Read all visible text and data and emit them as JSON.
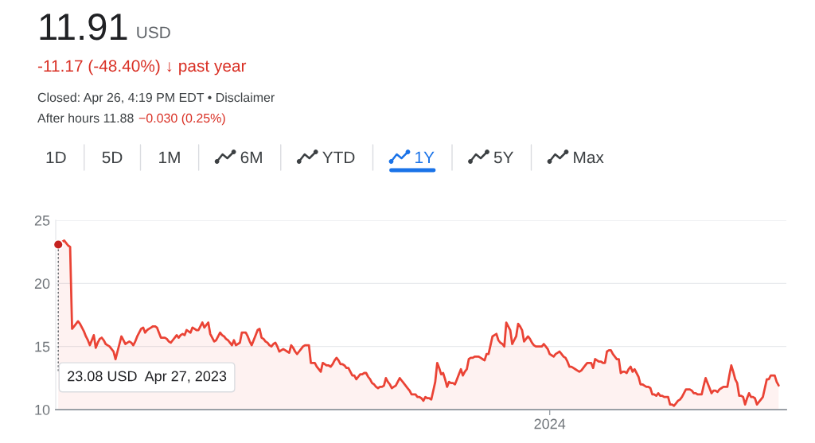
{
  "chart_data": {
    "type": "area",
    "title": "11.91 USD",
    "subtitle": "-11.17 (-48.40%) ↓ past year",
    "annotations": [
      "Closed: Apr 26, 4:19 PM EDT • Disclaimer",
      "After hours 11.88",
      "−0.030 (0.25%)",
      "1D",
      "5D",
      "1M",
      "6M",
      "YTD",
      "1Y",
      "5Y",
      "Max",
      "23.08 USD  Apr 27, 2023"
    ],
    "categories": [
      null,
      null,
      null,
      null,
      null,
      null,
      null,
      null,
      null,
      null,
      null,
      null,
      null,
      null,
      null,
      null,
      null,
      null,
      null,
      null,
      null,
      null,
      null,
      null,
      null,
      null,
      null,
      null,
      null,
      null,
      null,
      null,
      null,
      null,
      null,
      null,
      null,
      null,
      null,
      null,
      null,
      null,
      null,
      null,
      null,
      null,
      null,
      null,
      null,
      null,
      null,
      null,
      null,
      null,
      null,
      null,
      null,
      null,
      null,
      null,
      null,
      null,
      null,
      null,
      null,
      null,
      null,
      null,
      null,
      null,
      null,
      null,
      null,
      null,
      null,
      null,
      null,
      null,
      null,
      null,
      null,
      null,
      null,
      null,
      null,
      null,
      null,
      null,
      null,
      null,
      null,
      null,
      null,
      null,
      null,
      null,
      null,
      null,
      null,
      null,
      null,
      null,
      null,
      null,
      null,
      null,
      null,
      null,
      null,
      null,
      null,
      null,
      null,
      null,
      null,
      null,
      null,
      null,
      null,
      null,
      null,
      null,
      null,
      null,
      null,
      null,
      null,
      null,
      null,
      null,
      null,
      null,
      null,
      null,
      null,
      null,
      null,
      null,
      null,
      null,
      null,
      null,
      null,
      null,
      null,
      null,
      null,
      null,
      null,
      null,
      null,
      null,
      null,
      null,
      null,
      null,
      null,
      null,
      null,
      null,
      null,
      null,
      null,
      null,
      null,
      null,
      null,
      null,
      null,
      null,
      null,
      null,
      null,
      null,
      null,
      null,
      null,
      null,
      null,
      null,
      null,
      null,
      null,
      null,
      null,
      null,
      null,
      null,
      null,
      null,
      null,
      null,
      null,
      null,
      null,
      null,
      null,
      null,
      null,
      null,
      null,
      null,
      null,
      null,
      null,
      null,
      null,
      null,
      null,
      null,
      null,
      null,
      null,
      null,
      null,
      null,
      null,
      null,
      null,
      null,
      null,
      null,
      null,
      null,
      null,
      null,
      null,
      null,
      null,
      null,
      null,
      null,
      null,
      null,
      null,
      null,
      null,
      null,
      null,
      null,
      null,
      null,
      null,
      null,
      null,
      null,
      null,
      null,
      null,
      "2024",
      null,
      null,
      null,
      null,
      null,
      null,
      null,
      null,
      null,
      null,
      null,
      null,
      null,
      null,
      null,
      null,
      null,
      null,
      null,
      null,
      null,
      null,
      null,
      null,
      null,
      null,
      null,
      null,
      null,
      null,
      null,
      null,
      null,
      null,
      null,
      null,
      null,
      null,
      null,
      null,
      null,
      null,
      null,
      null,
      null,
      null,
      null,
      null,
      null,
      null,
      null,
      null,
      null,
      null,
      null,
      null,
      null,
      null,
      null,
      null,
      null,
      null,
      null,
      null,
      null,
      null,
      null,
      null,
      null,
      null,
      null,
      null,
      null,
      null,
      null,
      null,
      null,
      null,
      null,
      null,
      null,
      null,
      null,
      null,
      null,
      null,
      null,
      null,
      null,
      null,
      null,
      null,
      null,
      null,
      null,
      null,
      null,
      null,
      null,
      null,
      null,
      null,
      null,
      null,
      null,
      null,
      null,
      null,
      null,
      null,
      null,
      null,
      null,
      null,
      null,
      null
    ],
    "series": [
      {
        "color": "#ea4335",
        "values": [
          23.08,
          23.2,
          23.3,
          23.4,
          23.2,
          23.0,
          22.9,
          16.4,
          16.6,
          16.8,
          17.0,
          16.8,
          16.5,
          16.2,
          15.8,
          15.5,
          15.1,
          15.5,
          15.9,
          14.9,
          15.3,
          15.6,
          15.7,
          15.5,
          15.2,
          15.1,
          15.0,
          14.8,
          14.6,
          14.0,
          14.6,
          15.2,
          15.8,
          15.5,
          15.2,
          15.3,
          15.4,
          15.3,
          15.1,
          15.4,
          15.8,
          16.1,
          16.4,
          16.5,
          16.1,
          16.3,
          16.4,
          16.5,
          16.6,
          16.6,
          16.5,
          16.1,
          15.7,
          15.7,
          15.7,
          15.6,
          15.4,
          15.3,
          15.5,
          15.7,
          15.9,
          15.7,
          15.9,
          16.0,
          15.9,
          16.3,
          16.2,
          16.1,
          16.5,
          16.4,
          16.3,
          16.3,
          16.6,
          16.9,
          16.5,
          16.7,
          16.9,
          16.0,
          15.7,
          15.4,
          15.5,
          15.8,
          16.1,
          15.9,
          15.8,
          15.6,
          15.5,
          15.3,
          15.1,
          15.5,
          15.1,
          15.2,
          15.3,
          16.1,
          16.1,
          16.1,
          15.8,
          15.4,
          15.1,
          15.5,
          15.9,
          16.3,
          16.4,
          15.7,
          15.6,
          15.4,
          15.3,
          15.1,
          15.0,
          15.2,
          15.3,
          15.0,
          14.6,
          14.7,
          14.8,
          14.7,
          14.6,
          14.5,
          15.1,
          14.9,
          14.6,
          14.4,
          14.6,
          14.8,
          15.0,
          15.1,
          15.1,
          15.1,
          13.7,
          13.7,
          13.7,
          13.4,
          13.2,
          13.0,
          13.7,
          13.6,
          13.5,
          13.5,
          13.4,
          13.6,
          13.9,
          14.1,
          13.9,
          13.6,
          13.6,
          13.5,
          13.3,
          13.3,
          13.0,
          12.7,
          12.7,
          12.4,
          12.6,
          12.8,
          12.8,
          12.9,
          12.9,
          12.6,
          12.4,
          12.1,
          12.0,
          11.8,
          11.7,
          11.8,
          11.8,
          11.9,
          12.5,
          12.2,
          12.0,
          11.7,
          11.8,
          11.9,
          12.2,
          12.5,
          12.3,
          12.1,
          11.9,
          11.7,
          11.5,
          11.2,
          11.2,
          11.2,
          11.0,
          11.0,
          10.9,
          10.7,
          11.0,
          10.9,
          10.9,
          10.8,
          11.5,
          12.2,
          13.7,
          13.3,
          12.8,
          12.9,
          12.4,
          11.8,
          12.2,
          12.1,
          12.1,
          12.0,
          12.4,
          12.8,
          13.2,
          12.7,
          13.0,
          13.2,
          14.0,
          14.1,
          14.1,
          14.2,
          14.2,
          14.2,
          14.1,
          14.0,
          13.9,
          14.4,
          14.4,
          15.1,
          15.8,
          15.9,
          16.0,
          15.5,
          15.3,
          15.2,
          15.0,
          16.9,
          16.6,
          16.3,
          15.2,
          15.5,
          15.8,
          16.8,
          16.6,
          16.3,
          15.4,
          15.6,
          15.8,
          15.6,
          15.3,
          15.1,
          15.0,
          15.0,
          15.0,
          15.0,
          15.2,
          15.0,
          14.8,
          14.4,
          14.3,
          14.2,
          14.4,
          14.5,
          14.6,
          14.4,
          14.2,
          14.1,
          13.8,
          13.4,
          13.4,
          13.3,
          13.2,
          13.1,
          13.0,
          13.1,
          13.3,
          13.5,
          13.7,
          13.7,
          13.7,
          13.3,
          14.0,
          13.9,
          13.8,
          13.8,
          13.7,
          13.7,
          14.6,
          14.7,
          14.7,
          14.4,
          14.2,
          14.0,
          14.0,
          12.9,
          13.0,
          13.0,
          12.9,
          13.2,
          13.4,
          13.0,
          13.2,
          12.9,
          12.6,
          12.0,
          12.0,
          11.9,
          11.8,
          11.8,
          11.7,
          11.2,
          11.2,
          11.1,
          11.3,
          11.1,
          11.1,
          11.0,
          11.0,
          11.0,
          10.4,
          10.4,
          10.3,
          10.5,
          10.7,
          10.8,
          11.0,
          11.3,
          11.6,
          11.6,
          11.6,
          11.5,
          11.3,
          11.3,
          11.2,
          11.2,
          11.2,
          11.9,
          12.5,
          12.1,
          11.7,
          11.3,
          11.5,
          11.5,
          11.4,
          11.6,
          11.7,
          11.8,
          11.8,
          11.8,
          12.7,
          13.5,
          13.0,
          12.4,
          12.1,
          11.1,
          11.1,
          11.0,
          10.4,
          10.9,
          11.3,
          11.0,
          11.0,
          10.9,
          10.4,
          10.6,
          10.8,
          11.0,
          11.7,
          12.4,
          12.4,
          12.7,
          12.7,
          12.7,
          12.2,
          11.91
        ]
      }
    ],
    "ylim": [
      10,
      25
    ],
    "yticks": [
      10,
      15,
      20,
      25
    ],
    "grid": "y"
  }
}
